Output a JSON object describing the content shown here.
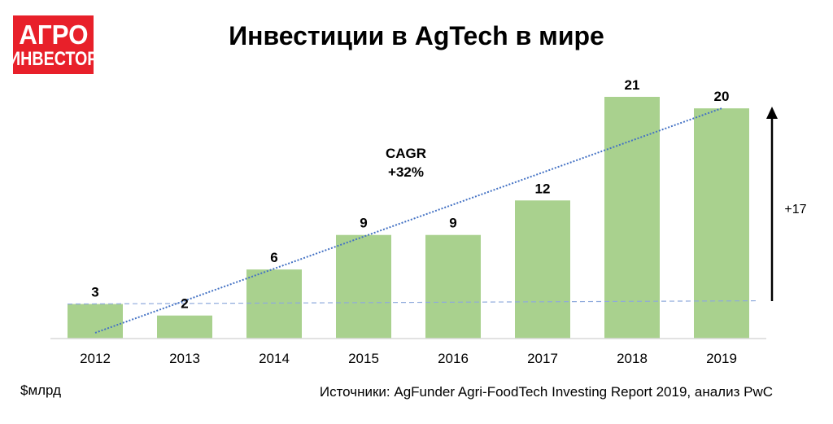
{
  "logo": {
    "line1": "АГРО",
    "line2": "ИНВЕСТОР"
  },
  "unit_label": "$млрд",
  "source": "Источники: AgFunder Agri-FoodTech Investing Report 2019, анализ PwC",
  "chart_data": {
    "type": "bar",
    "title": "Инвестиции в AgTech в мире",
    "categories": [
      "2012",
      "2013",
      "2014",
      "2015",
      "2016",
      "2017",
      "2018",
      "2019"
    ],
    "values": [
      3,
      2,
      6,
      9,
      9,
      12,
      21,
      20
    ],
    "ylim": [
      0,
      21
    ],
    "bar_color": "#a9d18e",
    "grid": false,
    "annotations": {
      "cagr_line1": "CAGR",
      "cagr_line2": "+32%",
      "growth": "+17"
    },
    "trend_color": "#4472c4"
  }
}
